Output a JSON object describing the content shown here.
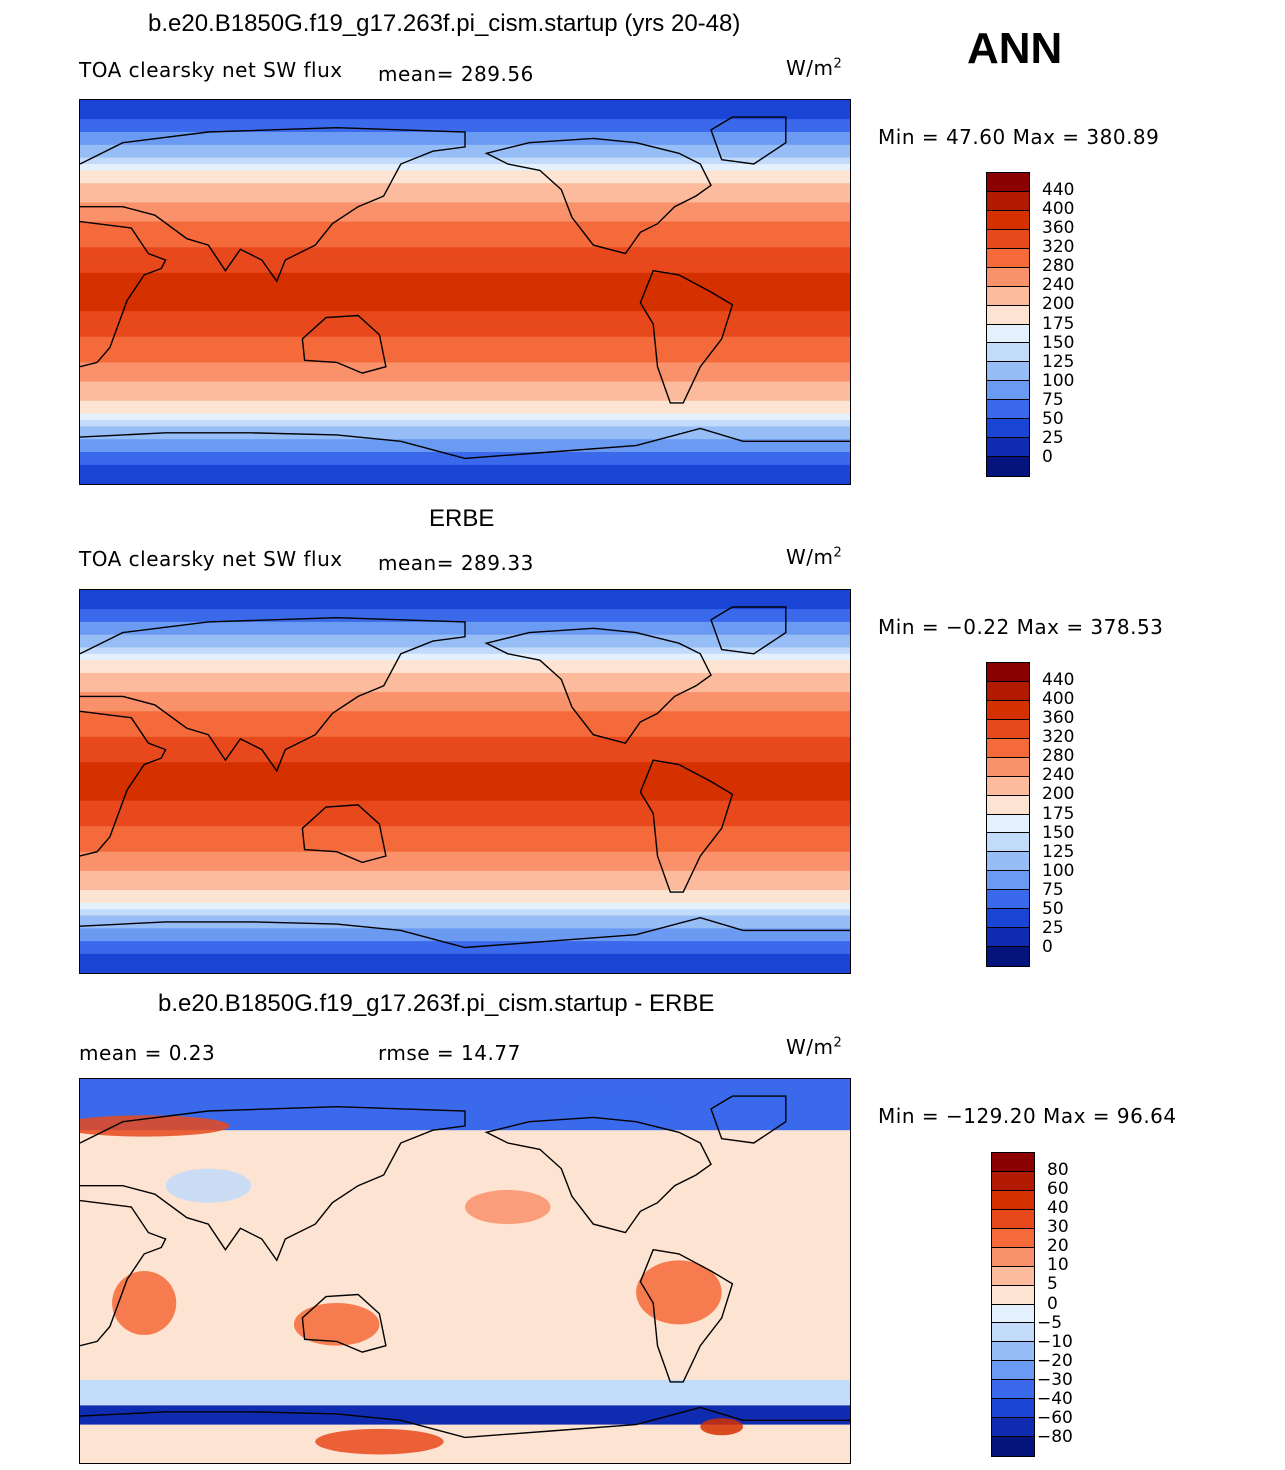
{
  "season": "ANN",
  "chart_data": [
    {
      "type": "heatmap",
      "title": "b.e20.B1850G.f19_g17.263f.pi_cism.startup (yrs 20-48)",
      "left_label": "TOA clearsky net SW flux",
      "mean_label": "mean=  289.56",
      "units": "W/m",
      "units_sup": "2",
      "minmax": "Min =   47.60 Max =  380.89",
      "levels": [
        "440",
        "400",
        "360",
        "320",
        "280",
        "240",
        "200",
        "175",
        "150",
        "125",
        "100",
        "75",
        "50",
        "25",
        "0"
      ],
      "colors": [
        "#8b0000",
        "#b11a00",
        "#d43000",
        "#e8491c",
        "#f46a3a",
        "#f9916b",
        "#fbbb9c",
        "#fde4d2",
        "#e4f0fc",
        "#c2dbfb",
        "#97bdf7",
        "#6a9af2",
        "#3a6aeb",
        "#1a44d4",
        "#0f2cb0",
        "#05147c"
      ]
    },
    {
      "type": "heatmap",
      "title": "ERBE",
      "left_label": "TOA clearsky net SW flux",
      "mean_label": "mean=  289.33",
      "units": "W/m",
      "units_sup": "2",
      "minmax": "Min =  −0.22 Max =  378.53",
      "levels": [
        "440",
        "400",
        "360",
        "320",
        "280",
        "240",
        "200",
        "175",
        "150",
        "125",
        "100",
        "75",
        "50",
        "25",
        "0"
      ],
      "colors": [
        "#8b0000",
        "#b11a00",
        "#d43000",
        "#e8491c",
        "#f46a3a",
        "#f9916b",
        "#fbbb9c",
        "#fde4d2",
        "#e4f0fc",
        "#c2dbfb",
        "#97bdf7",
        "#6a9af2",
        "#3a6aeb",
        "#1a44d4",
        "#0f2cb0",
        "#05147c"
      ]
    },
    {
      "type": "heatmap",
      "title": "b.e20.B1850G.f19_g17.263f.pi_cism.startup - ERBE",
      "mean_label": "mean =    0.23",
      "rmse_label": "rmse =   14.77",
      "units": "W/m",
      "units_sup": "2",
      "minmax": "Min = −129.20 Max =   96.64",
      "levels": [
        "80",
        "60",
        "40",
        "30",
        "20",
        "10",
        "5",
        "0",
        "−5",
        "−10",
        "−20",
        "−30",
        "−40",
        "−60",
        "−80"
      ],
      "colors": [
        "#8b0000",
        "#b11a00",
        "#d43000",
        "#e8491c",
        "#f46a3a",
        "#f9916b",
        "#fbbb9c",
        "#fde4d2",
        "#e4f0fc",
        "#c2dbfb",
        "#97bdf7",
        "#6a9af2",
        "#3a6aeb",
        "#1a44d4",
        "#0f2cb0",
        "#05147c"
      ]
    }
  ]
}
